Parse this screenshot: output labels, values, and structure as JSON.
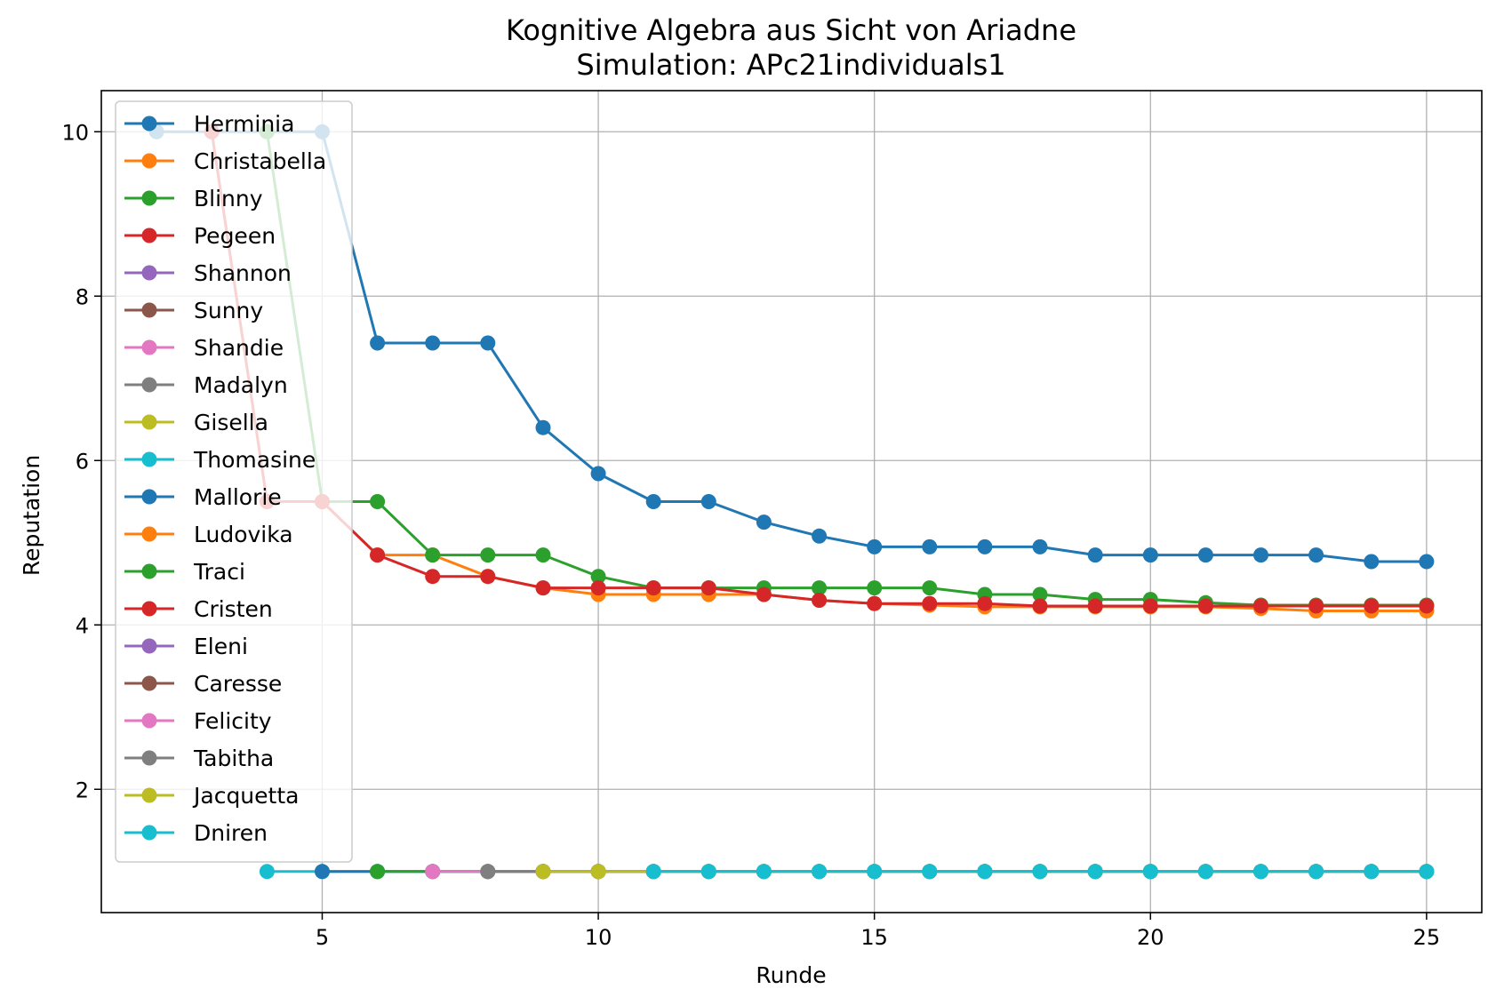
{
  "chart_data": {
    "type": "line",
    "title": "Kognitive Algebra aus Sicht von Ariadne",
    "subtitle": "Simulation: APc21individuals1",
    "xlabel": "Runde",
    "ylabel": "Reputation",
    "xlim": [
      1,
      26
    ],
    "ylim": [
      0.5,
      10.5
    ],
    "xticks": [
      5,
      10,
      15,
      20,
      25
    ],
    "yticks": [
      2,
      4,
      6,
      8,
      10
    ],
    "grid": true,
    "legend_position": "upper-left",
    "series": [
      {
        "name": "Herminia",
        "color": "#1f77b4",
        "x": [
          2,
          3,
          4,
          5,
          6,
          7,
          8,
          9,
          10,
          11,
          12,
          13,
          14,
          15,
          16,
          17,
          18,
          19,
          20,
          21,
          22,
          23,
          24,
          25
        ],
        "values": [
          10,
          10,
          10,
          10,
          7.43,
          7.43,
          7.43,
          6.4,
          5.84,
          5.5,
          5.5,
          5.25,
          5.08,
          4.95,
          4.95,
          4.95,
          4.95,
          4.85,
          4.85,
          4.85,
          4.85,
          4.85,
          4.77,
          4.77
        ]
      },
      {
        "name": "Christabella",
        "color": "#ff7f0e",
        "x": [
          3,
          4,
          5,
          6,
          7,
          8,
          9,
          10,
          11,
          12,
          13,
          14,
          15,
          16,
          17,
          18,
          19,
          20,
          21,
          22,
          23,
          24,
          25
        ],
        "values": [
          10,
          5.5,
          5.5,
          4.85,
          4.85,
          4.59,
          4.45,
          4.37,
          4.37,
          4.37,
          4.37,
          4.3,
          4.26,
          4.24,
          4.22,
          4.22,
          4.22,
          4.22,
          4.22,
          4.2,
          4.17,
          4.17,
          4.17
        ]
      },
      {
        "name": "Blinny",
        "color": "#2ca02c",
        "x": [
          4,
          5,
          6,
          7,
          8,
          9,
          10,
          11,
          12,
          13,
          14,
          15,
          16,
          17,
          18,
          19,
          20,
          21,
          22,
          23,
          24,
          25
        ],
        "values": [
          10,
          5.5,
          5.5,
          4.85,
          4.85,
          4.85,
          4.59,
          4.45,
          4.45,
          4.45,
          4.45,
          4.45,
          4.45,
          4.37,
          4.37,
          4.31,
          4.31,
          4.27,
          4.24,
          4.24,
          4.24,
          4.24
        ]
      },
      {
        "name": "Pegeen",
        "color": "#d62728",
        "x": [
          3,
          4,
          5,
          6,
          7,
          8,
          9,
          10,
          11,
          12,
          13,
          14,
          15,
          16,
          17,
          18,
          19,
          20,
          21,
          22,
          23,
          24,
          25
        ],
        "values": [
          10,
          5.5,
          5.5,
          4.85,
          4.59,
          4.59,
          4.45,
          4.45,
          4.45,
          4.45,
          4.37,
          4.3,
          4.26,
          4.26,
          4.26,
          4.23,
          4.23,
          4.23,
          4.23,
          4.23,
          4.23,
          4.23,
          4.23
        ]
      },
      {
        "name": "Shannon",
        "color": "#9467bd",
        "x": [],
        "values": []
      },
      {
        "name": "Sunny",
        "color": "#8c564b",
        "x": [],
        "values": []
      },
      {
        "name": "Shandie",
        "color": "#e377c2",
        "x": [],
        "values": []
      },
      {
        "name": "Madalyn",
        "color": "#7f7f7f",
        "x": [],
        "values": []
      },
      {
        "name": "Gisella",
        "color": "#bcbd22",
        "x": [],
        "values": []
      },
      {
        "name": "Thomasine",
        "color": "#17becf",
        "x": [
          4,
          5,
          6,
          7,
          8,
          9,
          10,
          11,
          12,
          13,
          14,
          15,
          16,
          17,
          18,
          19,
          20,
          21,
          22,
          23,
          24,
          25
        ],
        "values": [
          1,
          1,
          1,
          1,
          1,
          1,
          1,
          1,
          1,
          1,
          1,
          1,
          1,
          1,
          1,
          1,
          1,
          1,
          1,
          1,
          1,
          1
        ]
      },
      {
        "name": "Mallorie",
        "color": "#1f77b4",
        "x": [
          5,
          6,
          7,
          8,
          9,
          10,
          11,
          12,
          13,
          14,
          15,
          16,
          17,
          18,
          19,
          20,
          21,
          22,
          23,
          24,
          25
        ],
        "values": [
          1,
          1,
          1,
          1,
          1,
          1,
          1,
          1,
          1,
          1,
          1,
          1,
          1,
          1,
          1,
          1,
          1,
          1,
          1,
          1,
          1
        ]
      },
      {
        "name": "Ludovika",
        "color": "#ff7f0e",
        "x": [],
        "values": []
      },
      {
        "name": "Traci",
        "color": "#2ca02c",
        "x": [
          6,
          7,
          8,
          9,
          10,
          11,
          12,
          13,
          14,
          15,
          16,
          17,
          18,
          19,
          20,
          21,
          22,
          23,
          24,
          25
        ],
        "values": [
          1,
          1,
          1,
          1,
          1,
          1,
          1,
          1,
          1,
          1,
          1,
          1,
          1,
          1,
          1,
          1,
          1,
          1,
          1,
          1
        ]
      },
      {
        "name": "Cristen",
        "color": "#d62728",
        "x": [],
        "values": []
      },
      {
        "name": "Eleni",
        "color": "#9467bd",
        "x": [],
        "values": []
      },
      {
        "name": "Caresse",
        "color": "#8c564b",
        "x": [],
        "values": []
      },
      {
        "name": "Felicity",
        "color": "#e377c2",
        "x": [
          7,
          8,
          9,
          10,
          11,
          12,
          13,
          14,
          15,
          16,
          17,
          18,
          19,
          20,
          21,
          22,
          23,
          24,
          25
        ],
        "values": [
          1,
          1,
          1,
          1,
          1,
          1,
          1,
          1,
          1,
          1,
          1,
          1,
          1,
          1,
          1,
          1,
          1,
          1,
          1
        ]
      },
      {
        "name": "Tabitha",
        "color": "#7f7f7f",
        "x": [
          8,
          9,
          10,
          11,
          12,
          13,
          14,
          15,
          16,
          17,
          18,
          19,
          20,
          21,
          22,
          23,
          24,
          25
        ],
        "values": [
          1,
          1,
          1,
          1,
          1,
          1,
          1,
          1,
          1,
          1,
          1,
          1,
          1,
          1,
          1,
          1,
          1,
          1
        ]
      },
      {
        "name": "Jacquetta",
        "color": "#bcbd22",
        "x": [
          9,
          10,
          11,
          12,
          13,
          14,
          15,
          16,
          17,
          18,
          19,
          20,
          21,
          22,
          23,
          24,
          25
        ],
        "values": [
          1,
          1,
          1,
          1,
          1,
          1,
          1,
          1,
          1,
          1,
          1,
          1,
          1,
          1,
          1,
          1,
          1
        ]
      },
      {
        "name": "Dniren",
        "color": "#17becf",
        "x": [
          11,
          12,
          13,
          14,
          15,
          16,
          17,
          18,
          19,
          20,
          21,
          22,
          23,
          24,
          25
        ],
        "values": [
          1,
          1,
          1,
          1,
          1,
          1,
          1,
          1,
          1,
          1,
          1,
          1,
          1,
          1,
          1
        ]
      }
    ]
  }
}
